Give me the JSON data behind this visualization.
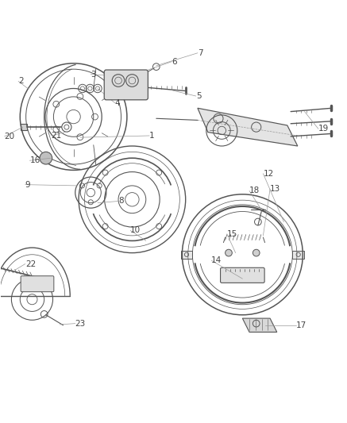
{
  "bg_color": "#ffffff",
  "line_color": "#555555",
  "label_color": "#444444",
  "fig_width": 4.37,
  "fig_height": 5.33,
  "dpi": 100
}
